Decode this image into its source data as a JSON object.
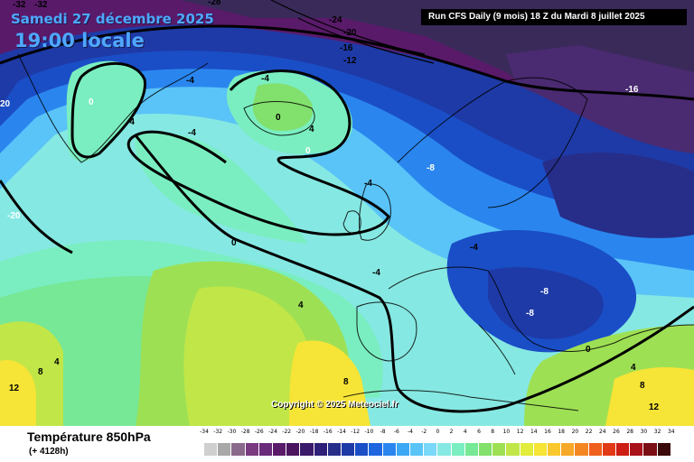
{
  "header": {
    "date": "Samedi 27 décembre 2025",
    "time": "19:00 locale",
    "run": "Run CFS Daily (9 mois) 18 Z du Mardi 8 juillet 2025"
  },
  "copyright": "Copyright © 2025 Meteociel.fr",
  "footer": {
    "title": "Température 850hPa",
    "subtitle": "(+ 4128h)"
  },
  "legend": {
    "unit_ticks": [
      "-34",
      "-32",
      "-30",
      "-28",
      "-26",
      "-24",
      "-22",
      "-20",
      "-18",
      "-16",
      "-14",
      "-12",
      "-10",
      "-8",
      "-6",
      "-4",
      "-2",
      "0",
      "2",
      "4",
      "6",
      "8",
      "10",
      "12",
      "14",
      "16",
      "18",
      "20",
      "22",
      "24",
      "26",
      "28",
      "30",
      "32",
      "34"
    ],
    "colors": [
      "#cfcfcf",
      "#a8a8a8",
      "#8a6a8a",
      "#7a3a80",
      "#6a2a7a",
      "#5a1a6a",
      "#4a145e",
      "#3a1a6a",
      "#2e2078",
      "#262e8a",
      "#1e3aa6",
      "#1a4ec6",
      "#1e66e0",
      "#2a86ee",
      "#3aa8f4",
      "#5ac4f8",
      "#7ad8f8",
      "#86e8e2",
      "#7aeec0",
      "#76e896",
      "#82e06c",
      "#9ee054",
      "#c0e648",
      "#e2ec3a",
      "#f6e436",
      "#f8c82e",
      "#f8a828",
      "#f48622",
      "#ee601c",
      "#e23a16",
      "#cc1e14",
      "#a8121a",
      "#7a0e14",
      "#3a0a0a"
    ]
  },
  "isotherms": [
    {
      "text": "-32"
    },
    {
      "text": "-32"
    },
    {
      "text": "-28"
    },
    {
      "text": "-24"
    },
    {
      "text": "-20"
    },
    {
      "text": "-16"
    },
    {
      "text": "-12"
    },
    {
      "text": "-16"
    },
    {
      "text": "0"
    },
    {
      "text": "-4"
    },
    {
      "text": "-4"
    },
    {
      "text": "-4"
    },
    {
      "text": "-4"
    },
    {
      "text": "0"
    },
    {
      "text": "4"
    },
    {
      "text": "0"
    },
    {
      "text": "-8"
    },
    {
      "text": "-4"
    },
    {
      "text": "-4"
    },
    {
      "text": "-4"
    },
    {
      "text": "-8"
    },
    {
      "text": "-8"
    },
    {
      "text": "0"
    },
    {
      "text": "4"
    },
    {
      "text": "4"
    },
    {
      "text": "8"
    },
    {
      "text": "12"
    },
    {
      "text": "8"
    },
    {
      "text": "4"
    },
    {
      "text": "8"
    },
    {
      "text": "12"
    },
    {
      "text": "-20"
    },
    {
      "text": "20"
    },
    {
      "text": "0"
    }
  ]
}
